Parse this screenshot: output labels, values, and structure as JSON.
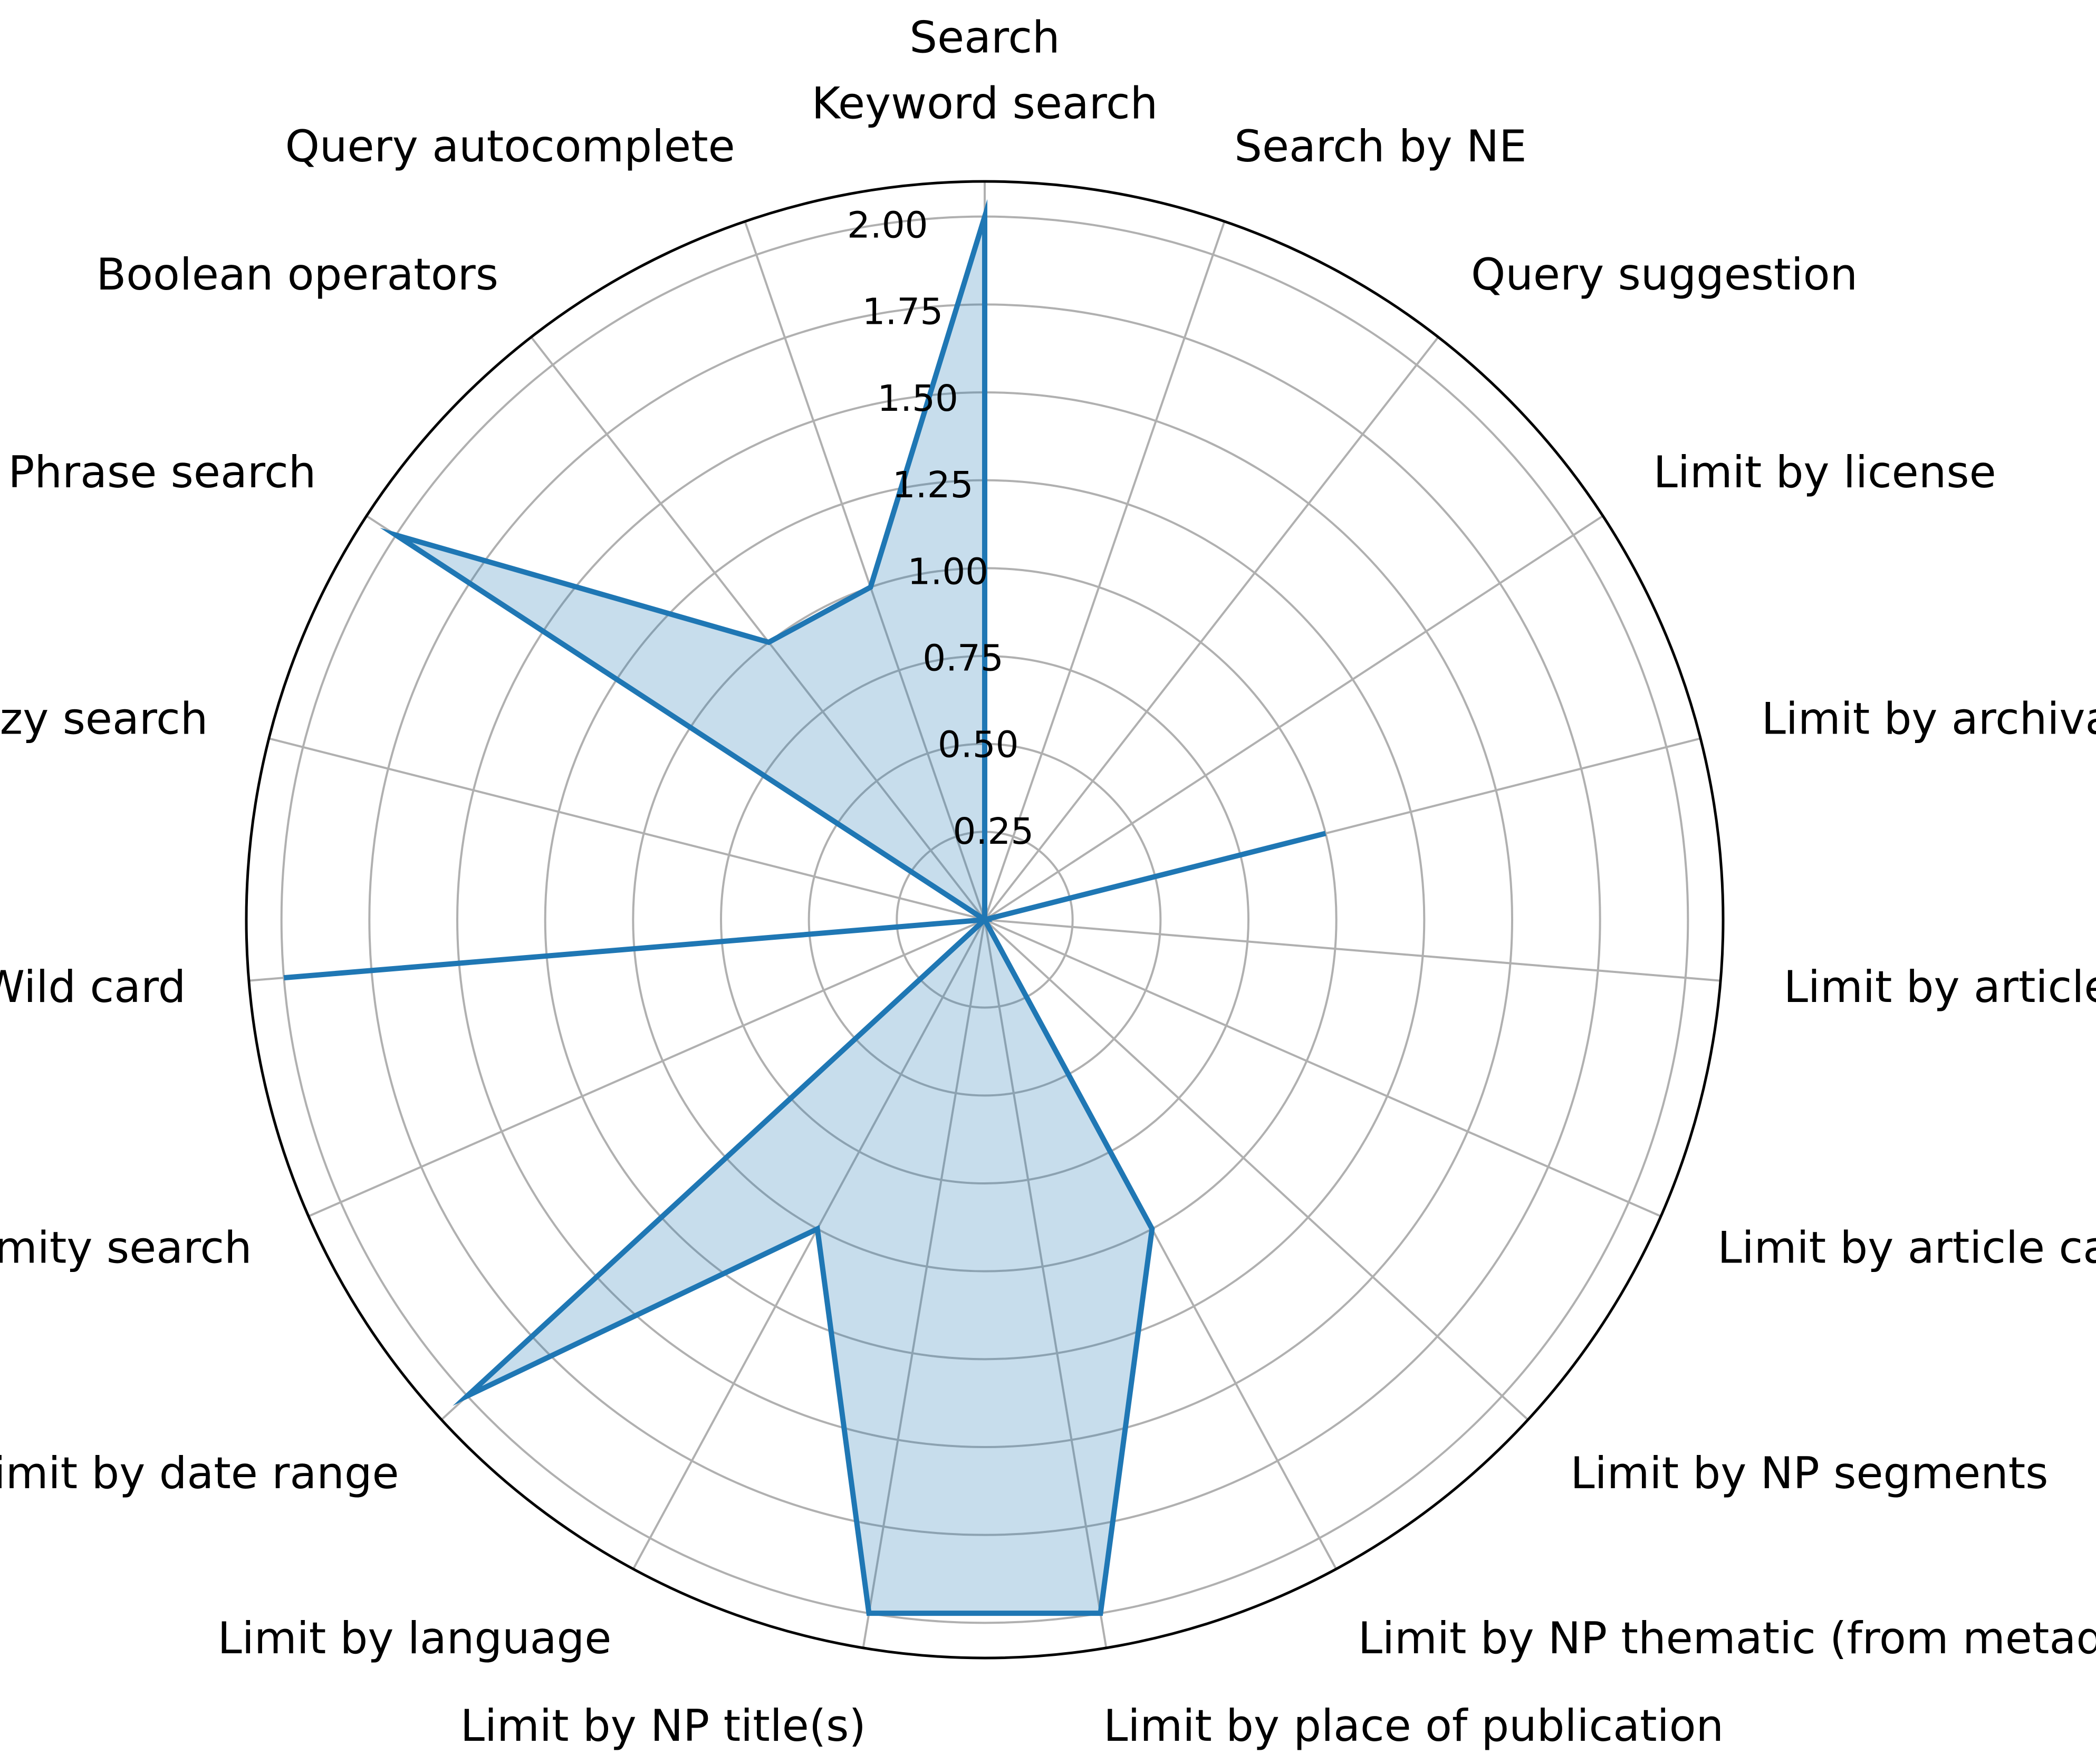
{
  "chart_data": {
    "type": "radar",
    "title": "",
    "categories": [
      "Search\nKeyword search",
      "Search by NE",
      "Query suggestion",
      "Limit by license",
      "Limit by archival holder",
      "Limit by article length",
      "Limit by article category",
      "Limit by NP segments",
      "Limit by NP thematic (from metadata)",
      "Limit by place of publication",
      "Limit by NP title(s)",
      "Limit by language",
      "Limit by date range",
      "Proximity search",
      "Wild card",
      "Fuzzy search",
      "Phrase search",
      "Boolean operators",
      "Query autocomplete"
    ],
    "series": [
      {
        "values": [
          2,
          0,
          0,
          0,
          1,
          0,
          0,
          0,
          1,
          2,
          2,
          1,
          2,
          0,
          2,
          0,
          2,
          1,
          1
        ]
      }
    ],
    "rlim": [
      0,
      2.1
    ],
    "rticks": [
      0.25,
      0.5,
      0.75,
      1.0,
      1.25,
      1.5,
      1.75,
      2.0
    ],
    "rtick_labels": [
      "0.25",
      "0.50",
      "0.75",
      "1.00",
      "1.25",
      "1.50",
      "1.75",
      "2.00"
    ],
    "grid": true,
    "line_color": "#1f77b4",
    "fill_color": "#1f77b4",
    "fill_alpha": 0.25,
    "grid_color": "#b0b0b0",
    "frame_color": "#000000"
  }
}
